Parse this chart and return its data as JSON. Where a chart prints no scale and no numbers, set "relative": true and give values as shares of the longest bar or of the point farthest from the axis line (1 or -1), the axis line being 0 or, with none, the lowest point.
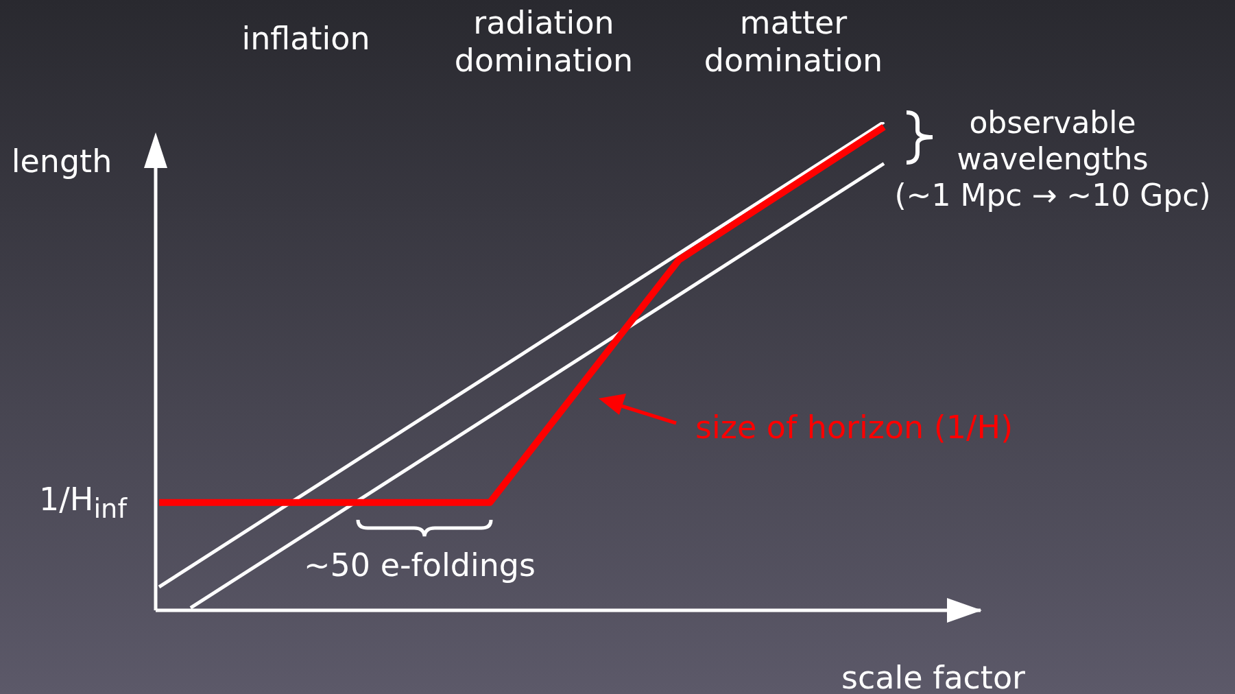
{
  "chart_data": {
    "type": "line",
    "relative": true,
    "xlabel": "scale factor",
    "ylabel": "length",
    "categories": [
      null,
      null,
      null,
      null,
      null,
      null,
      null,
      null,
      null,
      null,
      null,
      null,
      null,
      null,
      null,
      null,
      null,
      null,
      null,
      null,
      null,
      null,
      null,
      null,
      null,
      null,
      null,
      null,
      null,
      null,
      null,
      null,
      null,
      null,
      null,
      null,
      null,
      null,
      null,
      null,
      null,
      null,
      null,
      null,
      null,
      null,
      null
    ],
    "series": [
      {
        "color": "#ffffff",
        "values": [
          0.048,
          null,
          null,
          null,
          null,
          null,
          null,
          null,
          null,
          null,
          null,
          null,
          null,
          null,
          null,
          null,
          null,
          null,
          null,
          null,
          null,
          null,
          null,
          null,
          null,
          null,
          null,
          null,
          null,
          null,
          null,
          null,
          null,
          null,
          null,
          null,
          null,
          null,
          null,
          null,
          null,
          null,
          null,
          null,
          null,
          null,
          1.0
        ]
      },
      {
        "color": "#ffffff",
        "values": [
          null,
          null,
          0.005,
          null,
          null,
          null,
          null,
          null,
          null,
          null,
          null,
          null,
          null,
          null,
          null,
          null,
          null,
          null,
          null,
          null,
          null,
          null,
          null,
          null,
          null,
          null,
          null,
          null,
          null,
          null,
          null,
          null,
          null,
          null,
          null,
          null,
          null,
          null,
          null,
          null,
          null,
          null,
          null,
          null,
          null,
          null,
          0.915
        ]
      },
      {
        "color": "#ff0000",
        "values": [
          0.221,
          null,
          null,
          null,
          null,
          null,
          null,
          null,
          null,
          null,
          null,
          null,
          null,
          null,
          null,
          null,
          null,
          null,
          null,
          null,
          null,
          0.221,
          null,
          null,
          null,
          null,
          null,
          null,
          null,
          null,
          null,
          null,
          null,
          0.718,
          null,
          null,
          null,
          null,
          null,
          null,
          null,
          null,
          null,
          null,
          null,
          null,
          0.99
        ]
      }
    ],
    "annotations": [
      "inflation",
      "radiation\ndomination",
      "matter\ndomination",
      "observable\nwavelengths\n(~1 Mpc → ~10 Gpc)",
      "size of horizon (1/H)",
      "~50 e-foldings",
      "1/H$_{inf}$"
    ],
    "grid": false,
    "legend": false,
    "marker": "none",
    "line_style": "solid"
  }
}
